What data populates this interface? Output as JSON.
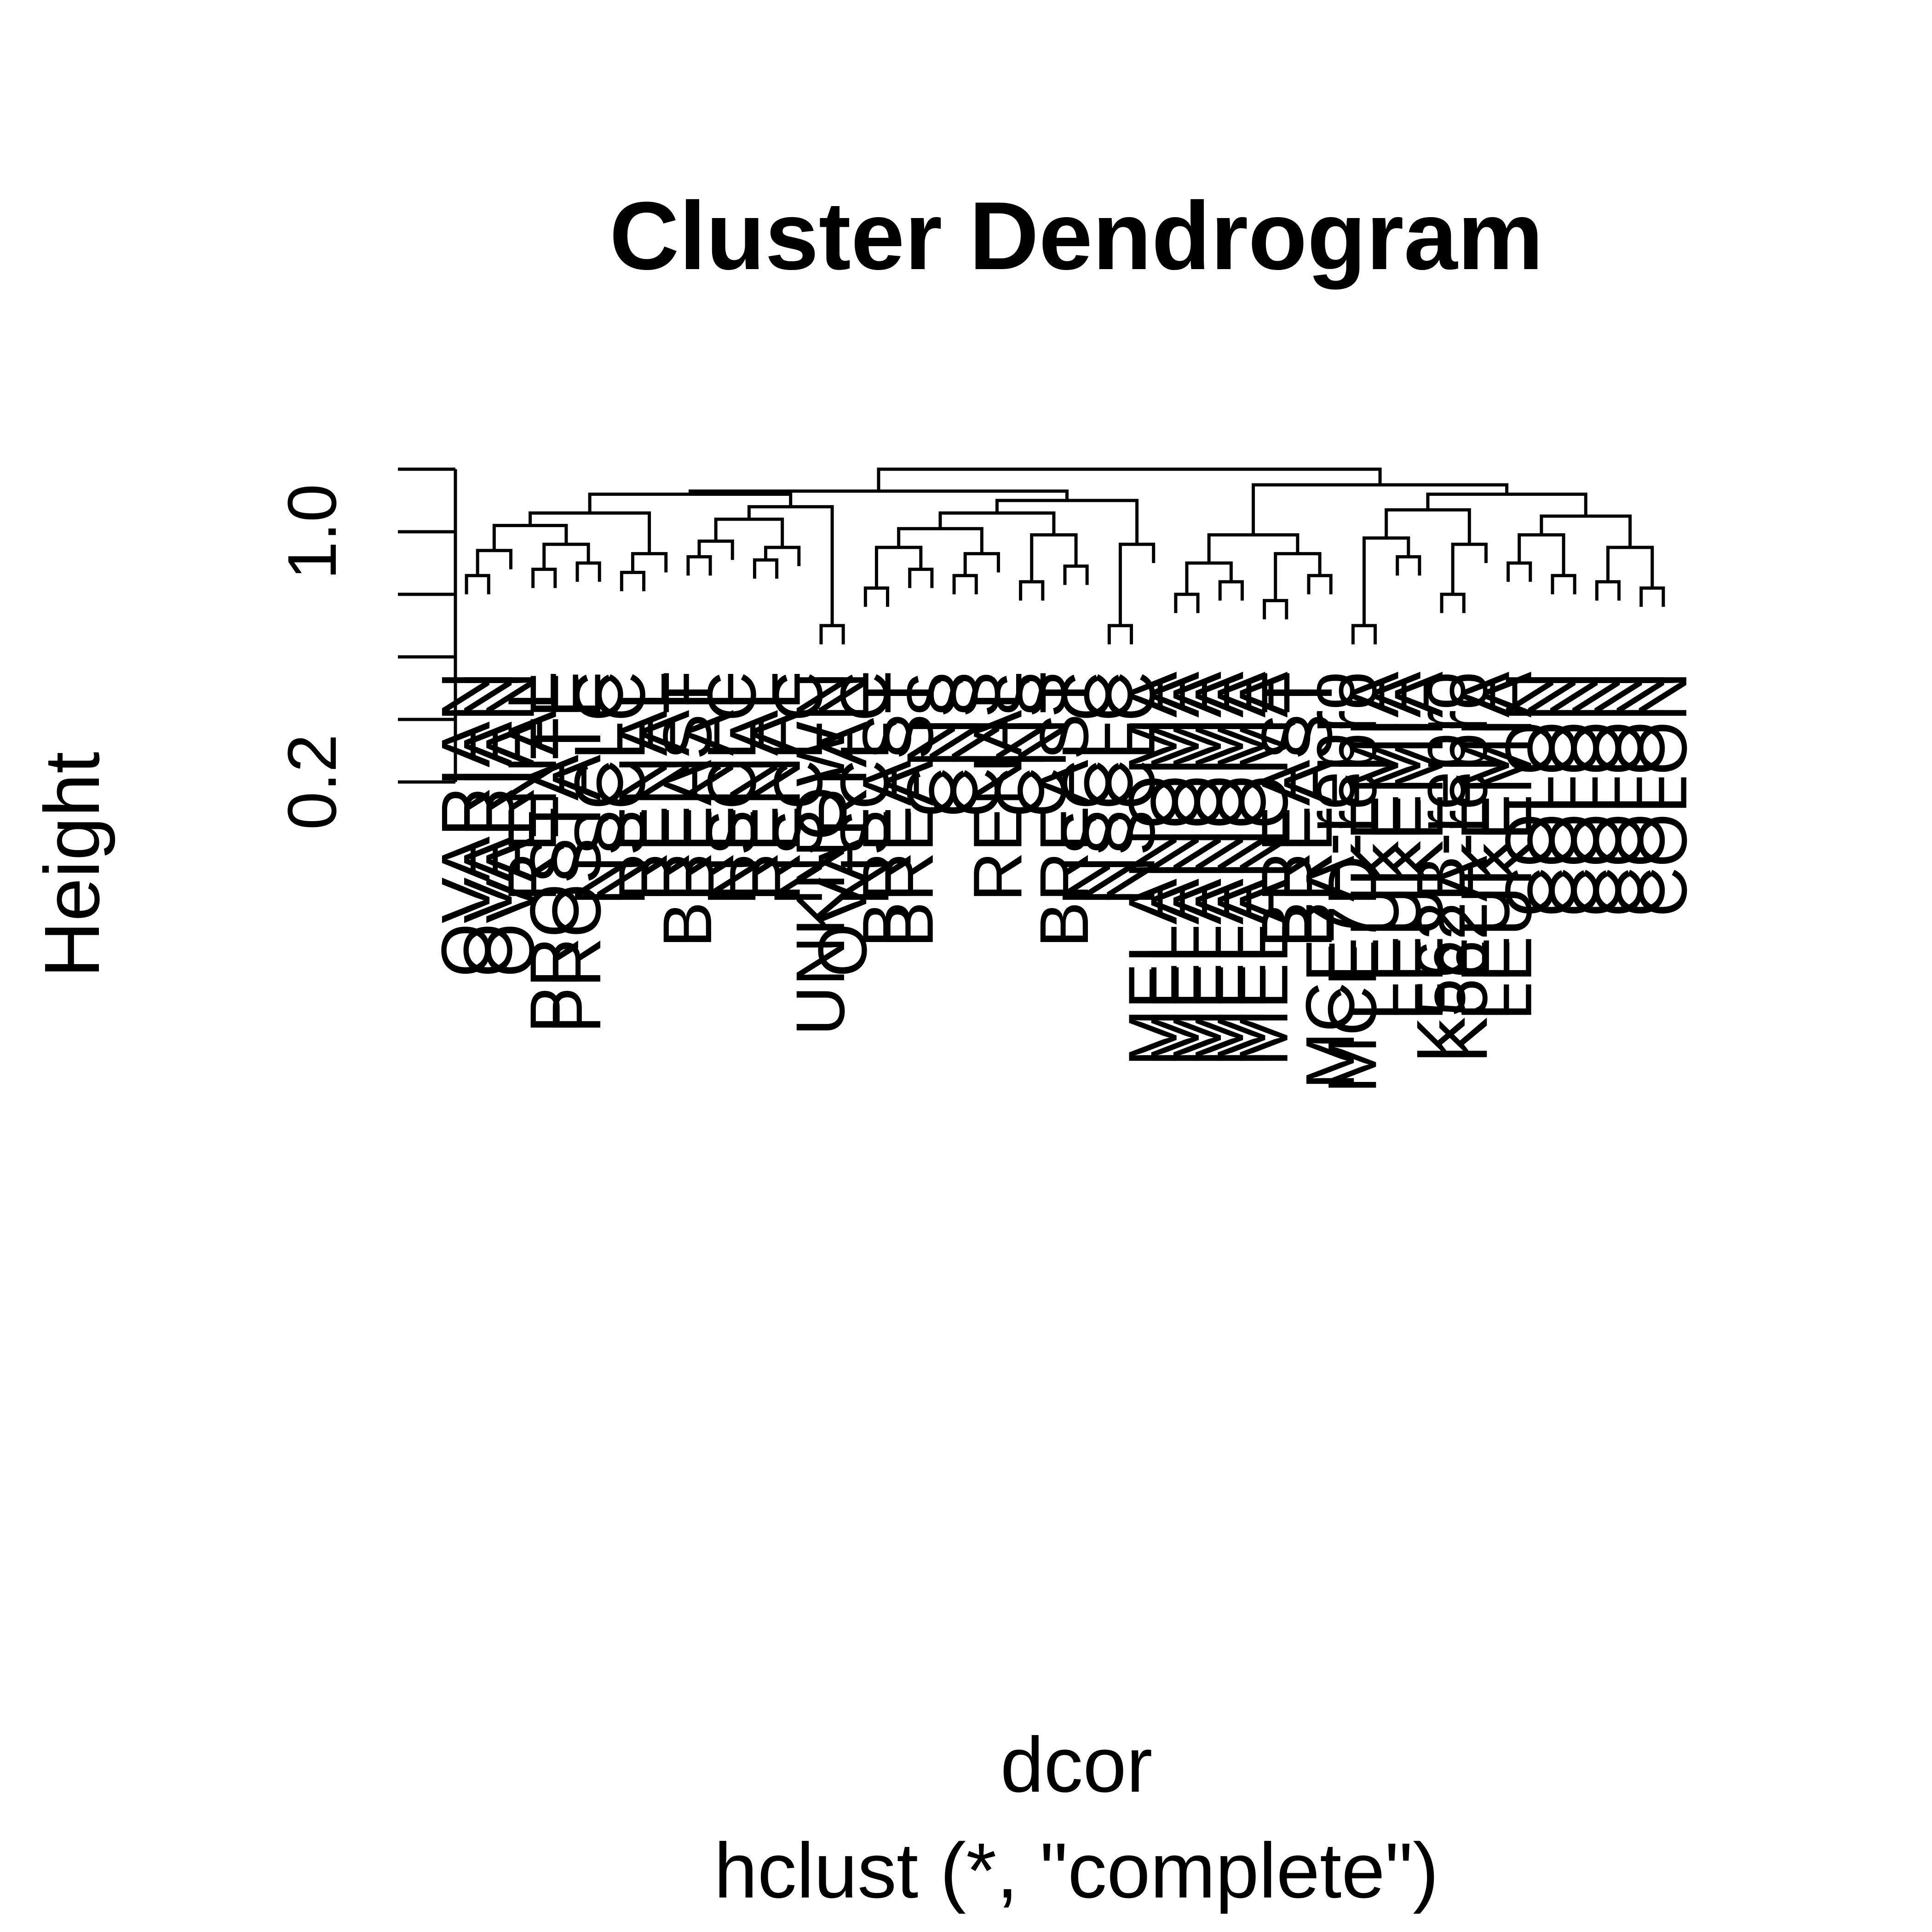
{
  "chart_data": {
    "type": "dendrogram",
    "title": "Cluster Dendrogram",
    "ylabel": "Height",
    "xlabel": "dcor",
    "sub": "hclust (*, \"complete\")",
    "ylim": [
      0.2,
      1.2
    ],
    "yticks": [
      0.2,
      1.0
    ],
    "tick_labels": [
      "0.2",
      "1.0"
    ],
    "leaves": [
      "OVARIAN",
      "OVARIAN",
      "OVARIAN",
      "RENAL",
      "PROSTATE",
      "PROSTATE",
      "NSCLC",
      "NSCLC",
      "RENAL",
      "RENAL",
      "BREAST",
      "RENAL",
      "NSCLC",
      "RENAL",
      "RENAL",
      "NSCLC",
      "UNKNOWN",
      "OVARIAN",
      "NSCLC",
      "BREAST",
      "BREAST",
      "CNS",
      "CNS",
      "CNS",
      "RENAL",
      "CNS",
      "CNS",
      "BREAST",
      "NSCLC",
      "NSCLC",
      "NSCLC",
      "MELANOMA",
      "MELANOMA",
      "MELANOMA",
      "MELANOMA",
      "MELANOMA",
      "MELANOMA",
      "BREAST",
      "BREAST",
      "MCF7A-repro",
      "MCF7D-repro",
      "LEUKEMIA",
      "LEUKEMIA",
      "LEUKEMIA",
      "K562B-repro",
      "K562A-repro",
      "LEUKEMIA",
      "LEUKEMIA",
      "COLON",
      "COLON",
      "COLON",
      "COLON",
      "COLON",
      "COLON",
      "COLON"
    ]
  }
}
